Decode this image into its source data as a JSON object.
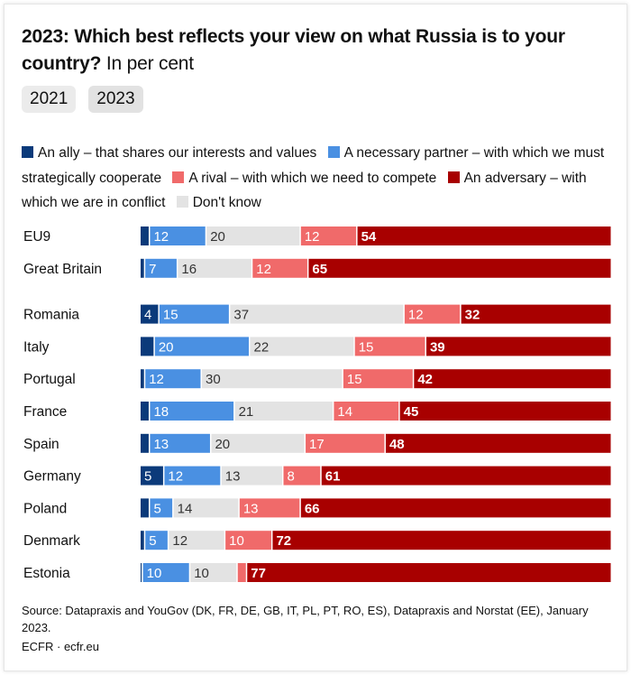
{
  "chart_data": {
    "type": "stacked-bar-horizontal",
    "title": "2023: Which best reflects your view on what Russia is to your country?",
    "subtitle": "In per cent",
    "unit": "per cent",
    "legend": [
      {
        "key": "ally",
        "label": "An ally – that shares our interests and values",
        "color": "#0b3a7a"
      },
      {
        "key": "partner",
        "label": "A necessary partner – with which we must strategically cooperate",
        "color": "#4a90e2"
      },
      {
        "key": "rival",
        "label": "A rival – with which we need to compete",
        "color": "#f06a6a"
      },
      {
        "key": "adversary",
        "label": "An adversary – with which we are in conflict",
        "color": "#a80000"
      },
      {
        "key": "dontknow",
        "label": "Don't know",
        "color": "#e3e3e3"
      }
    ],
    "stack_order": [
      "ally",
      "partner",
      "dontknow",
      "rival",
      "adversary"
    ],
    "categories": [
      "EU9",
      "Great Britain",
      "Romania",
      "Italy",
      "Portugal",
      "France",
      "Spain",
      "Germany",
      "Poland",
      "Denmark",
      "Estonia"
    ],
    "series": [
      {
        "name": "ally",
        "values": [
          2,
          1,
          4,
          3,
          1,
          2,
          2,
          5,
          2,
          1,
          0.5
        ],
        "labels": [
          "",
          "",
          "4",
          "",
          "",
          "",
          "",
          "5",
          "",
          "",
          ""
        ]
      },
      {
        "name": "partner",
        "values": [
          12,
          7,
          15,
          20,
          12,
          18,
          13,
          12,
          5,
          5,
          10
        ],
        "labels": [
          "12",
          "7",
          "15",
          "20",
          "12",
          "18",
          "13",
          "12",
          "5",
          "5",
          "10"
        ]
      },
      {
        "name": "dontknow",
        "values": [
          20,
          16,
          37,
          22,
          30,
          21,
          20,
          13,
          14,
          12,
          10
        ],
        "labels": [
          "20",
          "16",
          "37",
          "22",
          "30",
          "21",
          "20",
          "13",
          "14",
          "12",
          "10"
        ]
      },
      {
        "name": "rival",
        "values": [
          12,
          12,
          12,
          15,
          15,
          14,
          17,
          8,
          13,
          10,
          2
        ],
        "labels": [
          "12",
          "12",
          "12",
          "15",
          "15",
          "14",
          "17",
          "8",
          "13",
          "10",
          ""
        ]
      },
      {
        "name": "adversary",
        "values": [
          54,
          65,
          32,
          39,
          42,
          45,
          48,
          61,
          66,
          72,
          77
        ],
        "labels": [
          "54",
          "65",
          "32",
          "39",
          "42",
          "45",
          "48",
          "61",
          "66",
          "72",
          "77"
        ]
      }
    ],
    "group_break_after": "Great Britain"
  },
  "header": {
    "title": "2023: Which best reflects your view on what Russia is to your country?",
    "subtitle": "In per cent"
  },
  "toggles": [
    {
      "label": "2021",
      "active": false
    },
    {
      "label": "2023",
      "active": true
    }
  ],
  "footer": {
    "source": "Source: Datapraxis and YouGov (DK, FR, DE, GB, IT, PL, PT, RO, ES), Datapraxis and Norstat (EE), January 2023.",
    "brand": "ECFR · ecfr.eu"
  }
}
